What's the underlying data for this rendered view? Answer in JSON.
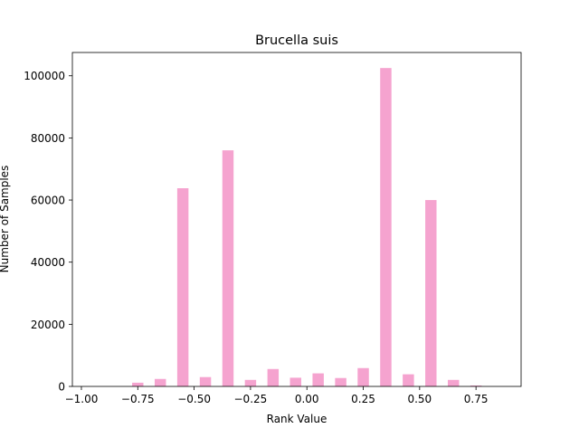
{
  "chart_data": {
    "type": "bar",
    "title": "Brucella suis",
    "xlabel": "Rank Value",
    "ylabel": "Number of Samples",
    "xlim": [
      -1.04,
      0.95
    ],
    "ylim": [
      0,
      107500
    ],
    "xticks": [
      -1.0,
      -0.75,
      -0.5,
      -0.25,
      0.0,
      0.25,
      0.5,
      0.75
    ],
    "xtick_labels": [
      "−1.00",
      "−0.75",
      "−0.50",
      "−0.25",
      "0.00",
      "0.25",
      "0.50",
      "0.75"
    ],
    "yticks": [
      0,
      20000,
      40000,
      60000,
      80000,
      100000
    ],
    "ytick_labels": [
      "0",
      "20000",
      "40000",
      "60000",
      "80000",
      "100000"
    ],
    "bar_width": 0.05,
    "bar_color": "#f5a3cf",
    "grid": false,
    "bars": [
      {
        "x": -0.95,
        "value": 0
      },
      {
        "x": -0.85,
        "value": 0
      },
      {
        "x": -0.75,
        "value": 1200
      },
      {
        "x": -0.65,
        "value": 2400
      },
      {
        "x": -0.55,
        "value": 63800
      },
      {
        "x": -0.45,
        "value": 3000
      },
      {
        "x": -0.35,
        "value": 76000
      },
      {
        "x": -0.25,
        "value": 2100
      },
      {
        "x": -0.15,
        "value": 5600
      },
      {
        "x": -0.05,
        "value": 2800
      },
      {
        "x": 0.05,
        "value": 4200
      },
      {
        "x": 0.15,
        "value": 2700
      },
      {
        "x": 0.25,
        "value": 5900
      },
      {
        "x": 0.35,
        "value": 102500
      },
      {
        "x": 0.45,
        "value": 3900
      },
      {
        "x": 0.55,
        "value": 60000
      },
      {
        "x": 0.65,
        "value": 2100
      },
      {
        "x": 0.75,
        "value": 300
      },
      {
        "x": 0.85,
        "value": 0
      }
    ]
  }
}
